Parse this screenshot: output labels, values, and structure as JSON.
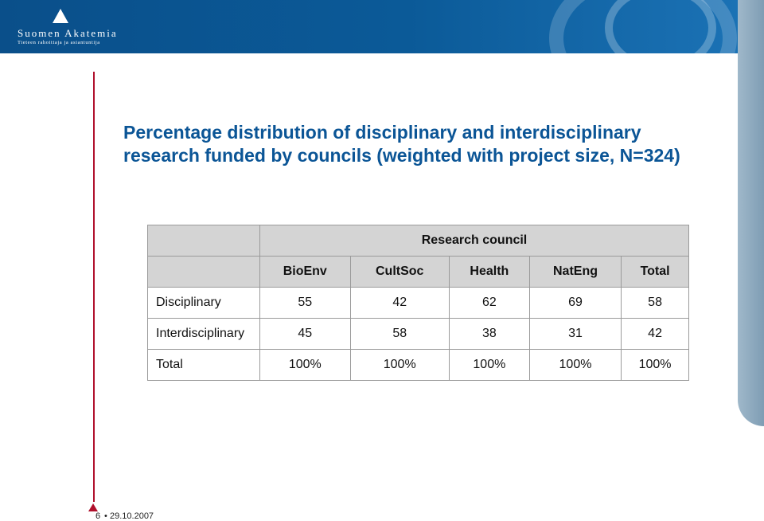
{
  "header": {
    "org_name": "Suomen Akatemia",
    "org_tagline": "Tieteen rahoittaja ja asiantuntija"
  },
  "slide": {
    "title": "Percentage distribution of disciplinary and interdisciplinary research funded by councils (weighted with project size, N=324)"
  },
  "table": {
    "group_header": "Research council",
    "columns": [
      "BioEnv",
      "CultSoc",
      "Health",
      "NatEng",
      "Total"
    ],
    "rows": [
      {
        "label": "Disciplinary",
        "values": [
          "55",
          "42",
          "62",
          "69",
          "58"
        ]
      },
      {
        "label": "Interdisciplinary",
        "values": [
          "45",
          "58",
          "38",
          "31",
          "42"
        ]
      },
      {
        "label": "Total",
        "values": [
          "100%",
          "100%",
          "100%",
          "100%",
          "100%"
        ]
      }
    ]
  },
  "footer": {
    "page_number": "6",
    "separator": "•",
    "date": "29.10.2007"
  },
  "colors": {
    "header_blue": "#0b5596",
    "accent_red": "#b0102c",
    "table_header_gray": "#d4d4d4"
  }
}
